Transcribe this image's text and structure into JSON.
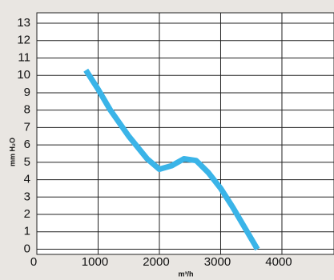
{
  "chart_data": {
    "type": "line",
    "x_label": "m³/h",
    "y_label": "mm H₂O",
    "x": [
      800,
      1000,
      1200,
      1500,
      1800,
      2000,
      2200,
      2400,
      2600,
      2800,
      3000,
      3200,
      3400,
      3600
    ],
    "series": [
      {
        "color": "#3ab4e8",
        "values": [
          10.3,
          9.2,
          8.0,
          6.5,
          5.2,
          4.6,
          4.8,
          5.2,
          5.1,
          4.4,
          3.5,
          2.4,
          1.2,
          0
        ]
      }
    ],
    "xlim": [
      0,
      4850
    ],
    "xticks": [
      0,
      1000,
      2000,
      3000,
      4000
    ],
    "ylim": [
      -0.3,
      13.6
    ],
    "yticks": [
      0,
      1,
      2,
      3,
      4,
      5,
      6,
      7,
      8,
      9,
      10,
      11,
      12,
      13
    ],
    "grid": true
  }
}
